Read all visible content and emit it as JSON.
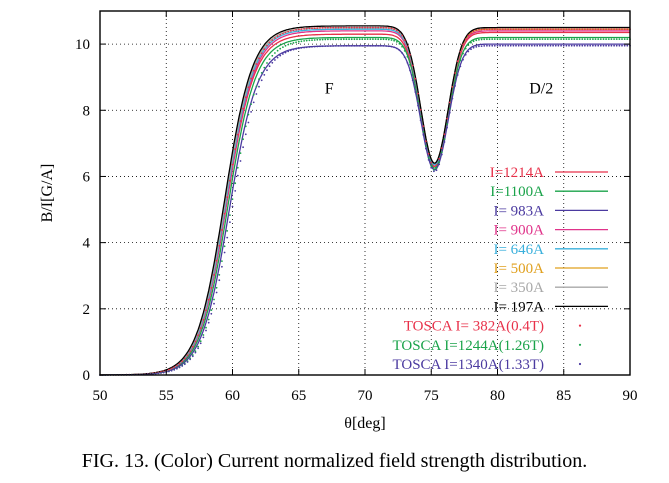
{
  "caption": "FIG. 13. (Color) Current normalized field strength distribution.",
  "chart_data": {
    "type": "line",
    "title": "",
    "xlabel": "θ[deg]",
    "ylabel": "B/I[G/A]",
    "xlim": [
      50,
      90
    ],
    "ylim": [
      0,
      11
    ],
    "xticks": [
      50,
      55,
      60,
      65,
      70,
      75,
      80,
      85,
      90
    ],
    "yticks": [
      0,
      2,
      4,
      6,
      8,
      10
    ],
    "grid": "dotted",
    "legend_position": "right-inside",
    "annotations": [
      {
        "text": "F",
        "x": 67.3,
        "y": 8.5
      },
      {
        "text": "D/2",
        "x": 83.3,
        "y": 8.5
      }
    ],
    "series": [
      {
        "name": "I=1214A",
        "color": "#e8314a",
        "style": "line",
        "flat_F": 10.3,
        "flat_D": 10.35,
        "dip": 6.3,
        "rise_shift": 0.0
      },
      {
        "name": "I=1100A",
        "color": "#1aa34a",
        "style": "line",
        "flat_F": 10.2,
        "flat_D": 10.2,
        "dip": 6.25,
        "rise_shift": 0.1
      },
      {
        "name": "I= 983A",
        "color": "#4b3aa0",
        "style": "line",
        "flat_F": 9.95,
        "flat_D": 10.0,
        "dip": 6.2,
        "rise_shift": 0.2
      },
      {
        "name": "I= 900A",
        "color": "#e0338a",
        "style": "line",
        "flat_F": 10.4,
        "flat_D": 10.4,
        "dip": 6.35,
        "rise_shift": 0.0
      },
      {
        "name": "I= 646A",
        "color": "#3ab0dc",
        "style": "line",
        "flat_F": 10.45,
        "flat_D": 10.45,
        "dip": 6.35,
        "rise_shift": -0.05
      },
      {
        "name": "I= 500A",
        "color": "#e0a01e",
        "style": "line",
        "flat_F": 10.5,
        "flat_D": 10.45,
        "dip": 6.4,
        "rise_shift": -0.1
      },
      {
        "name": "I= 350A",
        "color": "#a8a8a8",
        "style": "line",
        "flat_F": 10.5,
        "flat_D": 10.5,
        "dip": 6.4,
        "rise_shift": -0.1
      },
      {
        "name": "I= 197A",
        "color": "#000000",
        "style": "line",
        "flat_F": 10.55,
        "flat_D": 10.5,
        "dip": 6.4,
        "rise_shift": -0.15
      },
      {
        "name": "TOSCA I= 382A(0.4T)",
        "color": "#e8314a",
        "style": "dots",
        "flat_F": 10.5,
        "flat_D": 10.45,
        "dip": 6.3,
        "rise_shift": 0.0
      },
      {
        "name": "TOSCA I=1244A(1.26T)",
        "color": "#1aa34a",
        "style": "dots",
        "flat_F": 10.15,
        "flat_D": 10.15,
        "dip": 6.2,
        "rise_shift": 0.35
      },
      {
        "name": "TOSCA I=1340A(1.33T)",
        "color": "#4b3aa0",
        "style": "dots",
        "flat_F": 9.95,
        "flat_D": 9.95,
        "dip": 6.15,
        "rise_shift": 0.4
      }
    ]
  }
}
